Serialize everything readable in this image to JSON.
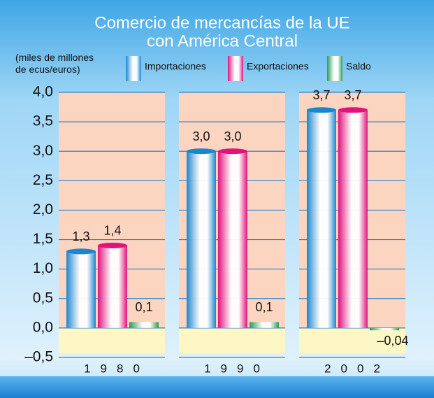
{
  "chart_data": {
    "type": "bar",
    "title": [
      "Comercio de mercancías de la UE",
      "con América Central"
    ],
    "ylabel": "(miles de millones de ecus/euros)",
    "categories": [
      "1980",
      "1990",
      "2002"
    ],
    "series": [
      {
        "name": "Importaciones",
        "color": "#1a86d0",
        "values": [
          1.3,
          3.0,
          3.7
        ],
        "value_labels": [
          "1,3",
          "3,0",
          "3,7"
        ]
      },
      {
        "name": "Exportaciones",
        "color": "#e0137c",
        "values": [
          1.4,
          3.0,
          3.7
        ],
        "value_labels": [
          "1,4",
          "3,0",
          "3,7"
        ]
      },
      {
        "name": "Saldo",
        "color": "#2a9a50",
        "values": [
          0.1,
          0.1,
          -0.04
        ],
        "value_labels": [
          "0,1",
          "0,1",
          "–0,04"
        ]
      }
    ],
    "ylim": [
      -0.5,
      4.0
    ],
    "yticks": [
      {
        "value": -0.5,
        "label": "–0,5"
      },
      {
        "value": 0,
        "label": "0,0"
      },
      {
        "value": 0.5,
        "label": "0,5"
      },
      {
        "value": 1.0,
        "label": "1,0"
      },
      {
        "value": 1.5,
        "label": "1,5"
      },
      {
        "value": 2.0,
        "label": "2,0"
      },
      {
        "value": 2.5,
        "label": "2,5"
      },
      {
        "value": 3.0,
        "label": "3,0"
      },
      {
        "value": 3.5,
        "label": "3,5"
      },
      {
        "value": 4.0,
        "label": "4,0"
      }
    ],
    "grid": true
  }
}
